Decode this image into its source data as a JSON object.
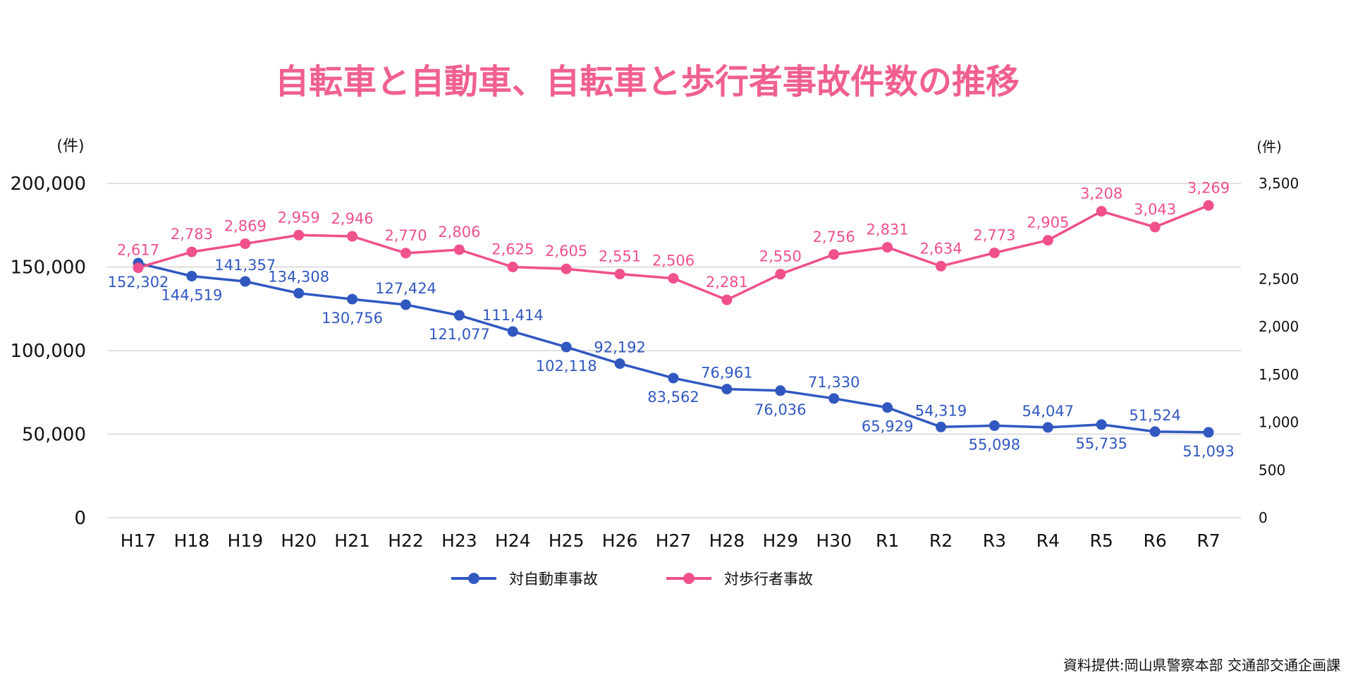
{
  "chart_data": {
    "type": "line",
    "title": "自転車と自動車、自転車と歩行者事故件数の推移",
    "categories": [
      "H17",
      "H18",
      "H19",
      "H20",
      "H21",
      "H22",
      "H23",
      "H24",
      "H25",
      "H26",
      "H27",
      "H28",
      "H29",
      "H30",
      "R1",
      "R2",
      "R3",
      "R4",
      "R5",
      "R6",
      "R7"
    ],
    "left_axis": {
      "unit_label": "(件)",
      "ylim": [
        0,
        200000
      ],
      "ticks": [
        "0",
        "50,000",
        "100,000",
        "150,000",
        "200,000"
      ],
      "tick_values": [
        0,
        50000,
        100000,
        150000,
        200000
      ]
    },
    "right_axis": {
      "unit_label": "(件)",
      "ylim": [
        0,
        3500
      ],
      "ticks": [
        "0",
        "500",
        "1,000",
        "1,500",
        "2,000",
        "2,500",
        "3,500"
      ],
      "tick_values": [
        0,
        500,
        1000,
        1500,
        2000,
        2500,
        3500
      ]
    },
    "grid": true,
    "legend_position": "bottom",
    "series": [
      {
        "name": "対自動車事故",
        "axis": "left",
        "color": "#3058c0",
        "values": [
          152302,
          144519,
          141357,
          134308,
          130756,
          127424,
          121077,
          111414,
          102118,
          92192,
          83562,
          76961,
          76036,
          71330,
          65929,
          54319,
          55098,
          54047,
          55735,
          51524,
          51093
        ],
        "labels": [
          "152,302",
          "144,519",
          "141,357",
          "134,308",
          "130,756",
          "127,424",
          "121,077",
          "111,414",
          "102,118",
          "92,192",
          "83,562",
          "76,961",
          "76,036",
          "71,330",
          "65,929",
          "54,319",
          "55,098",
          "54,047",
          "55,735",
          "51,524",
          "51,093"
        ]
      },
      {
        "name": "対歩行者事故",
        "axis": "right",
        "color": "#f0508c",
        "values": [
          2617,
          2783,
          2869,
          2959,
          2946,
          2770,
          2806,
          2625,
          2605,
          2551,
          2506,
          2281,
          2550,
          2756,
          2831,
          2634,
          2773,
          2905,
          3208,
          3043,
          3269
        ],
        "labels": [
          "2,617",
          "2,783",
          "2,869",
          "2,959",
          "2,946",
          "2,770",
          "2,806",
          "2,625",
          "2,605",
          "2,551",
          "2,506",
          "2,281",
          "2,550",
          "2,756",
          "2,831",
          "2,634",
          "2,773",
          "2,905",
          "3,208",
          "3,043",
          "3,269"
        ]
      }
    ]
  },
  "colors": {
    "title": "#f0608e",
    "axis_text": "#111111",
    "grid": "#d6d6d6"
  },
  "source": "資料提供:岡山県警察本部 交通部交通企画課"
}
